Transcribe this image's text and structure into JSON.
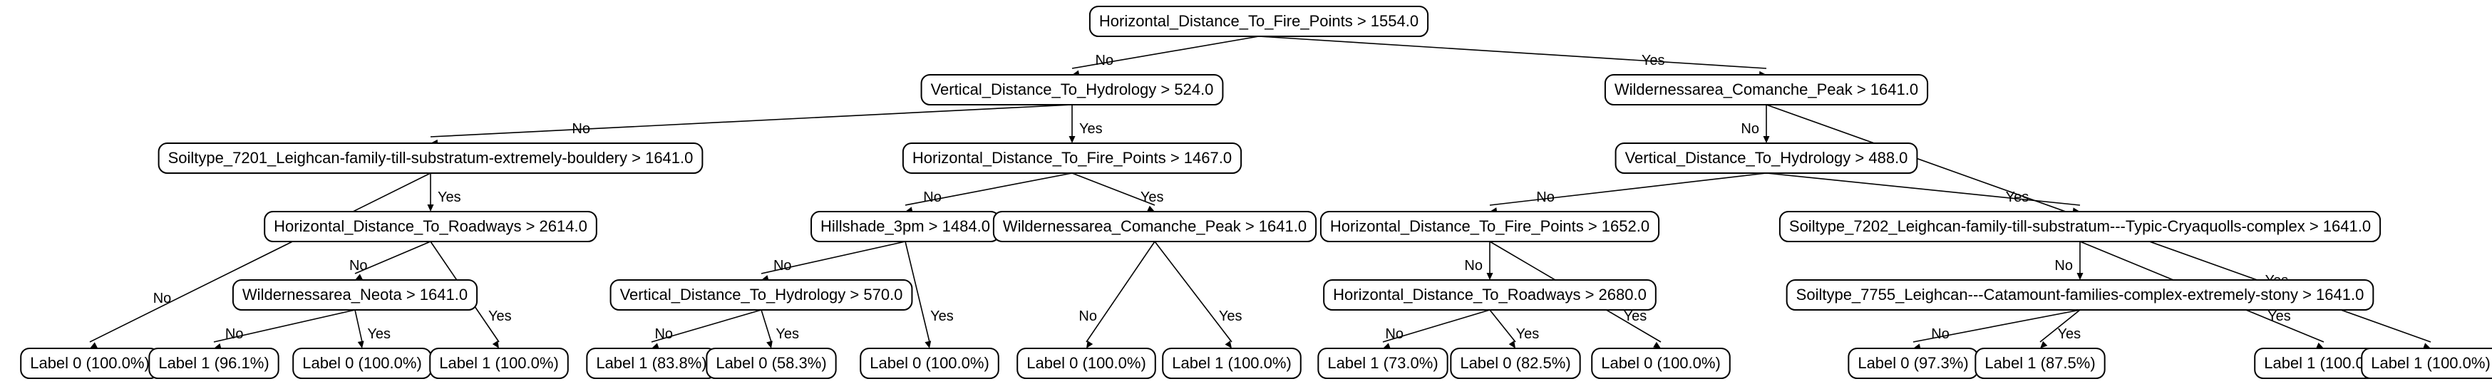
{
  "nodes": [
    {
      "id": "n0",
      "label": "Horizontal_Distance_To_Fire_Points > 1554.0"
    },
    {
      "id": "n1",
      "label": "Vertical_Distance_To_Hydrology > 524.0"
    },
    {
      "id": "n2",
      "label": "Wildernessarea_Comanche_Peak > 1641.0"
    },
    {
      "id": "n3",
      "label": "Soiltype_7201_Leighcan-family-till-substratum-extremely-bouldery > 1641.0"
    },
    {
      "id": "n4",
      "label": "Horizontal_Distance_To_Fire_Points > 1467.0"
    },
    {
      "id": "n5",
      "label": "Vertical_Distance_To_Hydrology > 488.0"
    },
    {
      "id": "n6",
      "label": "Horizontal_Distance_To_Roadways > 2614.0"
    },
    {
      "id": "n7",
      "label": "Hillshade_3pm > 1484.0"
    },
    {
      "id": "n8",
      "label": "Wildernessarea_Comanche_Peak > 1641.0"
    },
    {
      "id": "n9",
      "label": "Horizontal_Distance_To_Fire_Points > 1652.0"
    },
    {
      "id": "n10",
      "label": "Soiltype_7202_Leighcan-family-till-substratum---Typic-Cryaquolls-complex > 1641.0"
    },
    {
      "id": "n11",
      "label": "Wildernessarea_Neota > 1641.0"
    },
    {
      "id": "n12",
      "label": "Vertical_Distance_To_Hydrology > 570.0"
    },
    {
      "id": "n13",
      "label": "Horizontal_Distance_To_Roadways > 2680.0"
    },
    {
      "id": "n14",
      "label": "Soiltype_7755_Leighcan---Catamount-families-complex-extremely-stony > 1641.0"
    },
    {
      "id": "l0",
      "label": "Label 0 (100.0%)"
    },
    {
      "id": "l1",
      "label": "Label 1 (96.1%)"
    },
    {
      "id": "l2",
      "label": "Label 0 (100.0%)"
    },
    {
      "id": "l3",
      "label": "Label 1 (100.0%)"
    },
    {
      "id": "l4",
      "label": "Label 1 (83.8%)"
    },
    {
      "id": "l5",
      "label": "Label 0 (58.3%)"
    },
    {
      "id": "l6",
      "label": "Label 0 (100.0%)"
    },
    {
      "id": "l7",
      "label": "Label 0 (100.0%)"
    },
    {
      "id": "l8",
      "label": "Label 1 (100.0%)"
    },
    {
      "id": "l9",
      "label": "Label 1 (73.0%)"
    },
    {
      "id": "l10",
      "label": "Label 0 (82.5%)"
    },
    {
      "id": "l11",
      "label": "Label 0 (100.0%)"
    },
    {
      "id": "l12",
      "label": "Label 0 (97.3%)"
    },
    {
      "id": "l13",
      "label": "Label 1 (87.5%)"
    },
    {
      "id": "l14",
      "label": "Label 1 (100.0%)"
    },
    {
      "id": "l15",
      "label": "Label 1 (100.0%)"
    }
  ],
  "edges": [
    {
      "from": "n0",
      "to": "n1",
      "label": "No"
    },
    {
      "from": "n0",
      "to": "n2",
      "label": "Yes"
    },
    {
      "from": "n1",
      "to": "n3",
      "label": "No"
    },
    {
      "from": "n1",
      "to": "n4",
      "label": "Yes"
    },
    {
      "from": "n2",
      "to": "n5",
      "label": "No"
    },
    {
      "from": "n2",
      "to": "l15",
      "label": "Yes"
    },
    {
      "from": "n3",
      "to": "l0",
      "label": "No"
    },
    {
      "from": "n3",
      "to": "n6",
      "label": "Yes"
    },
    {
      "from": "n6",
      "to": "n11",
      "label": "No"
    },
    {
      "from": "n6",
      "to": "l3",
      "label": "Yes"
    },
    {
      "from": "n11",
      "to": "l1",
      "label": "No"
    },
    {
      "from": "n11",
      "to": "l2",
      "label": "Yes"
    },
    {
      "from": "n4",
      "to": "n7",
      "label": "No"
    },
    {
      "from": "n4",
      "to": "n8",
      "label": "Yes"
    },
    {
      "from": "n7",
      "to": "n12",
      "label": "No"
    },
    {
      "from": "n7",
      "to": "l6",
      "label": "Yes"
    },
    {
      "from": "n12",
      "to": "l4",
      "label": "No"
    },
    {
      "from": "n12",
      "to": "l5",
      "label": "Yes"
    },
    {
      "from": "n8",
      "to": "l7",
      "label": "No"
    },
    {
      "from": "n8",
      "to": "l8",
      "label": "Yes"
    },
    {
      "from": "n5",
      "to": "n9",
      "label": "No"
    },
    {
      "from": "n5",
      "to": "n10",
      "label": "Yes"
    },
    {
      "from": "n9",
      "to": "n13",
      "label": "No"
    },
    {
      "from": "n9",
      "to": "l11",
      "label": "Yes"
    },
    {
      "from": "n13",
      "to": "l9",
      "label": "No"
    },
    {
      "from": "n13",
      "to": "l10",
      "label": "Yes"
    },
    {
      "from": "n10",
      "to": "n14",
      "label": "No"
    },
    {
      "from": "n10",
      "to": "l14",
      "label": "Yes"
    },
    {
      "from": "n14",
      "to": "l12",
      "label": "No"
    },
    {
      "from": "n14",
      "to": "l13",
      "label": "Yes"
    }
  ]
}
